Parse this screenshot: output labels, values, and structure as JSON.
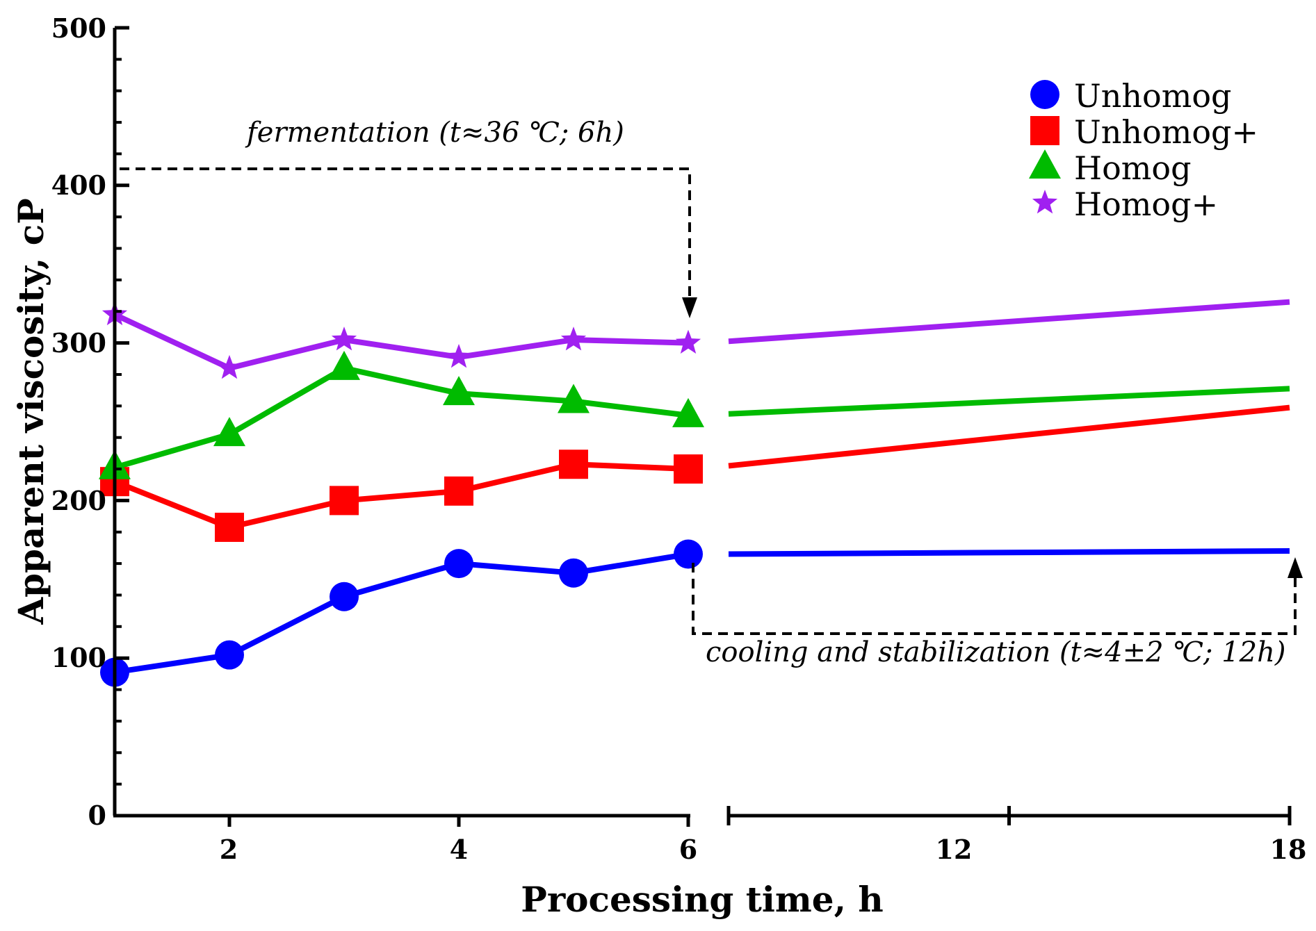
{
  "chart_data": {
    "type": "line",
    "title": "",
    "xlabel": "Processing time, h",
    "ylabel": "Apparent viscosity, cP",
    "ylim": [
      0,
      500
    ],
    "yticks": [
      "0",
      "100",
      "200",
      "300",
      "400",
      "500"
    ],
    "x_segments": [
      {
        "range": [
          1,
          6
        ],
        "ticks": [
          "2",
          "4",
          "6"
        ]
      },
      {
        "range": [
          6,
          18
        ],
        "ticks": [
          "12",
          "18"
        ]
      }
    ],
    "x_measured": [
      1,
      2,
      3,
      4,
      5,
      6
    ],
    "x_extension": [
      6,
      18
    ],
    "series": [
      {
        "name": "Unhomog",
        "color": "#0000ff",
        "marker": "circle",
        "values": [
          91,
          102,
          139,
          160,
          154,
          166
        ],
        "extension": [
          166,
          168
        ]
      },
      {
        "name": "Unhomog+",
        "color": "#ff0000",
        "marker": "square",
        "values": [
          212,
          183,
          200,
          206,
          223,
          220
        ],
        "extension": [
          222,
          259
        ]
      },
      {
        "name": "Homog",
        "color": "#00bb00",
        "marker": "triangle",
        "values": [
          221,
          242,
          284,
          268,
          263,
          254
        ],
        "extension": [
          255,
          271
        ]
      },
      {
        "name": "Homog+",
        "color": "#a020f0",
        "marker": "star",
        "values": [
          318,
          284,
          302,
          291,
          302,
          300
        ],
        "extension": [
          301,
          326
        ]
      }
    ],
    "legend_position": "top-right",
    "annotations": {
      "fermentation": "fermentation (t≈36 ℃; 6h)",
      "cooling": "cooling and stabilization (t≈4±2 ℃; 12h)"
    }
  }
}
